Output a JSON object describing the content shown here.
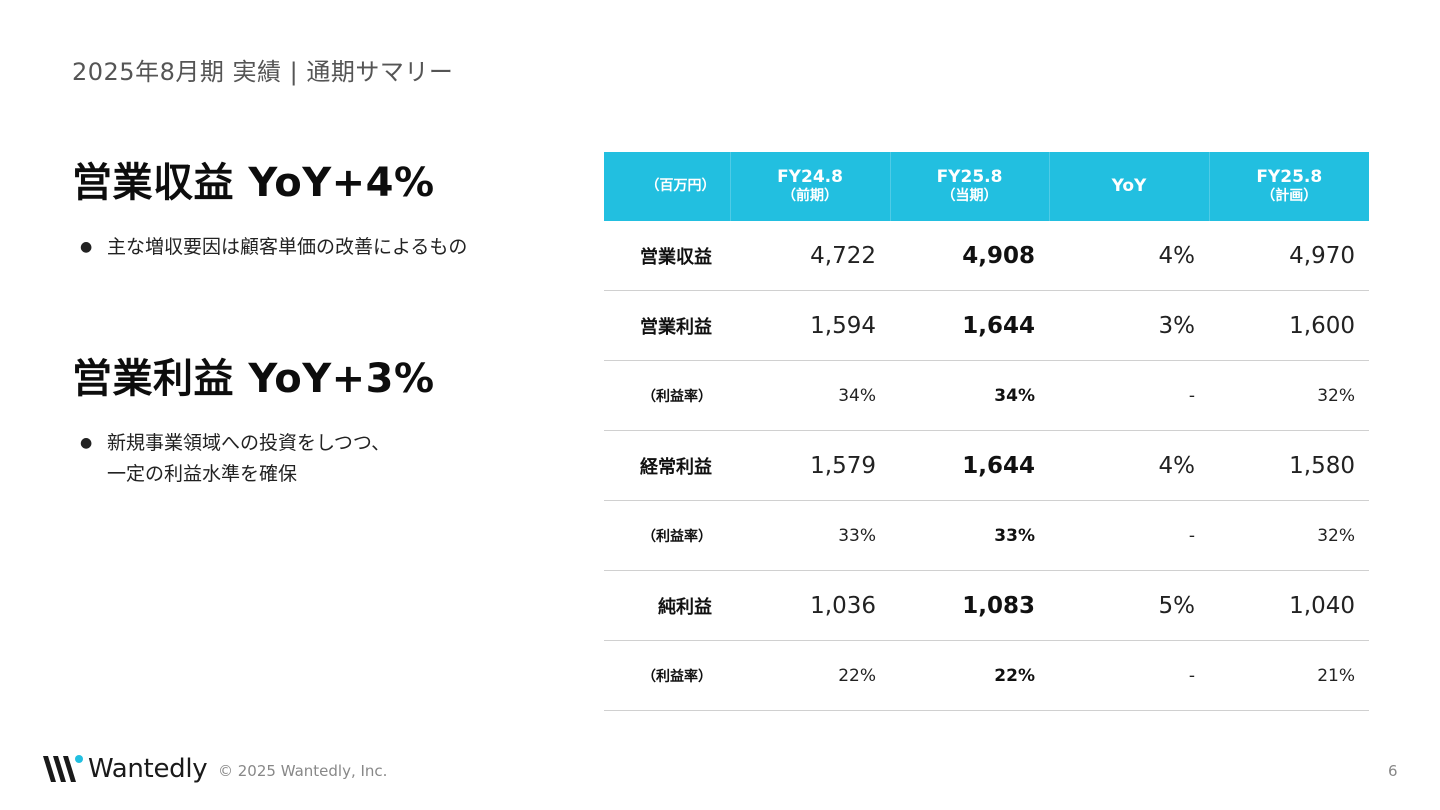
{
  "page": {
    "title": "2025年8月期 実績 | 通期サマリー",
    "number": "6"
  },
  "highlights": [
    {
      "headline": "営業収益 YoY+4%",
      "bullet_mark": "●",
      "bullet_lines": [
        "主な増収要因は顧客単価の改善によるもの"
      ]
    },
    {
      "headline": "営業利益 YoY+3%",
      "bullet_mark": "●",
      "bullet_lines": [
        "新規事業領域への投資をしつつ、",
        "一定の利益水準を確保"
      ]
    }
  ],
  "table": {
    "header": {
      "unit": "（百万円）",
      "columns": [
        {
          "label": "FY24.8",
          "sub": "（前期）"
        },
        {
          "label": "FY25.8",
          "sub": "（当期）"
        },
        {
          "label": "YoY",
          "sub": ""
        },
        {
          "label": "FY25.8",
          "sub": "（計画）"
        }
      ]
    },
    "rows": [
      {
        "label": "営業収益",
        "prev": "4,722",
        "cur": "4,908",
        "yoy": "4%",
        "plan": "4,970"
      },
      {
        "label": "営業利益",
        "prev": "1,594",
        "cur": "1,644",
        "yoy": "3%",
        "plan": "1,600"
      },
      {
        "label": "（利益率）",
        "prev": "34%",
        "cur": "34%",
        "yoy": "-",
        "plan": "32%"
      },
      {
        "label": "経常利益",
        "prev": "1,579",
        "cur": "1,644",
        "yoy": "4%",
        "plan": "1,580"
      },
      {
        "label": "（利益率）",
        "prev": "33%",
        "cur": "33%",
        "yoy": "-",
        "plan": "32%"
      },
      {
        "label": "純利益",
        "prev": "1,036",
        "cur": "1,083",
        "yoy": "5%",
        "plan": "1,040"
      },
      {
        "label": "（利益率）",
        "prev": "22%",
        "cur": "22%",
        "yoy": "-",
        "plan": "21%"
      }
    ],
    "header_color": "#22bfe0"
  },
  "footer": {
    "logo_text": "Wantedly",
    "logo_icon": "wantedly-w-icon",
    "logo_accent": "#22bfe0",
    "copyright": "© 2025 Wantedly, Inc."
  }
}
